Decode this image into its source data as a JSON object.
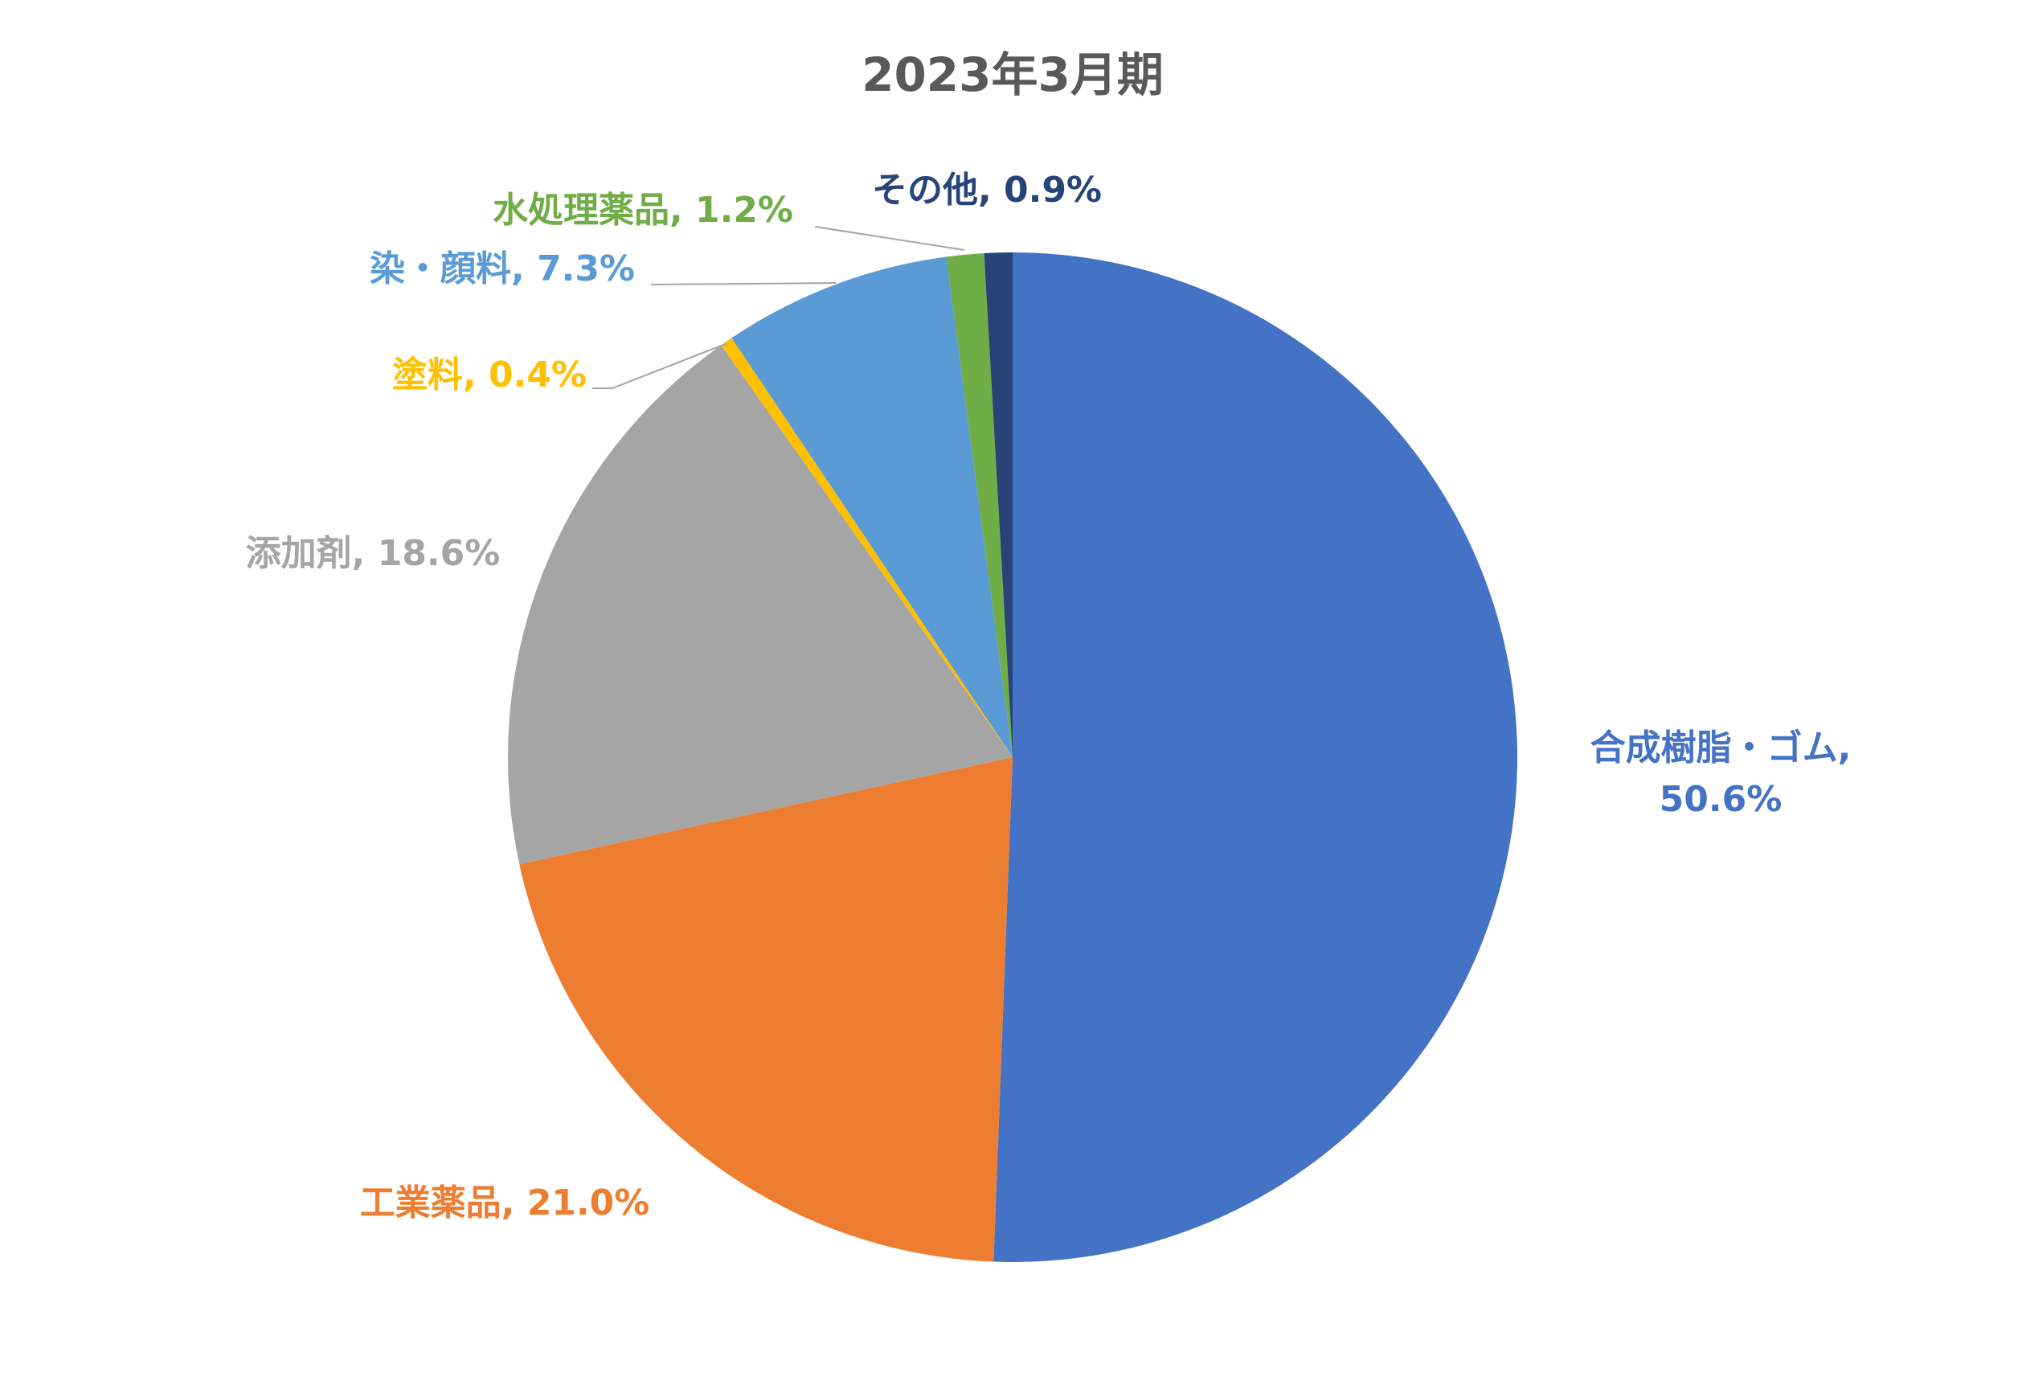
{
  "chart_data": {
    "type": "pie",
    "title": "2023年3月期",
    "values": [
      50.6,
      21.0,
      18.6,
      0.4,
      7.3,
      1.2,
      0.9
    ],
    "value_labels": [
      "合成樹脂・ゴム, 50.6%",
      "工業薬品, 21.0%",
      "添加剤, 18.6%",
      "塗料, 0.4%",
      "染・顔料, 7.3%",
      "水処理薬品, 1.2%",
      "その他, 0.9%"
    ],
    "colors": [
      "#4472c4",
      "#ed7d31",
      "#a5a5a5",
      "#ffc000",
      "#5b9bd5",
      "#70ad47",
      "#264478"
    ]
  }
}
